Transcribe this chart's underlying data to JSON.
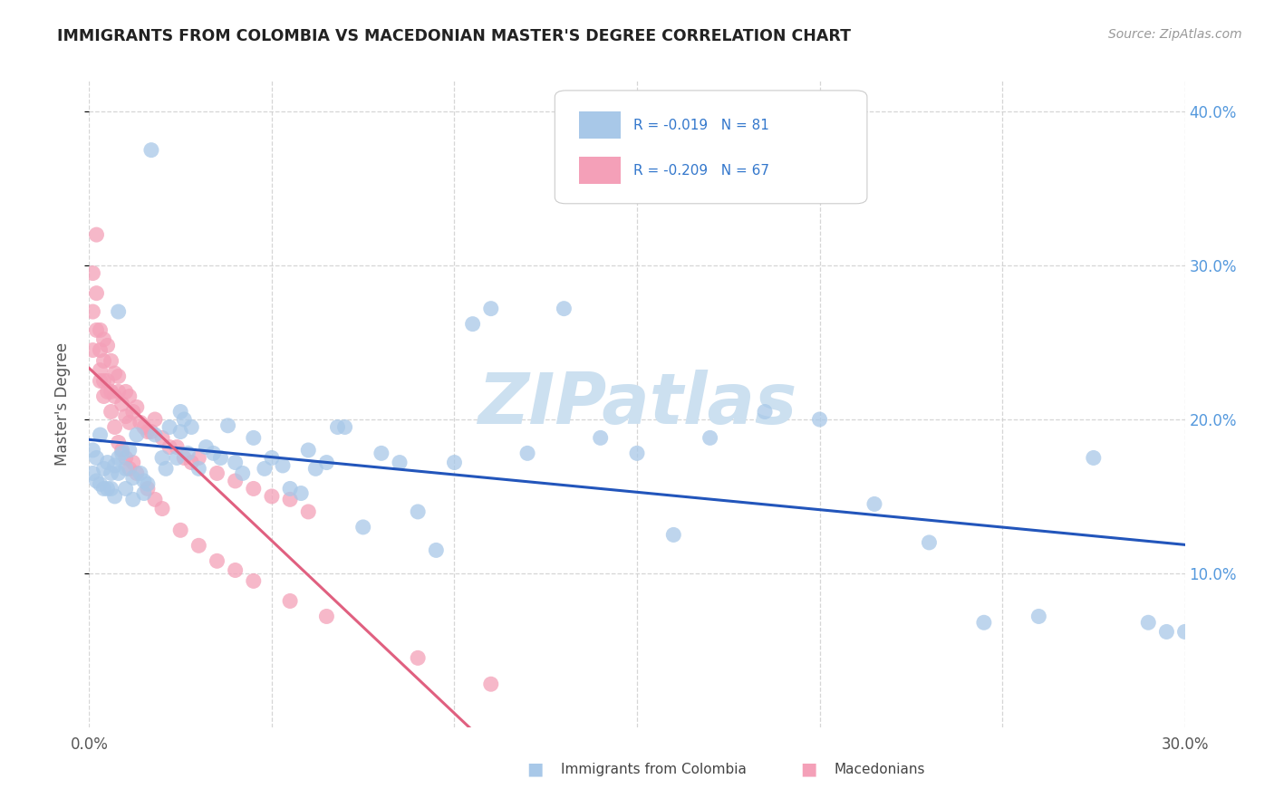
{
  "title": "IMMIGRANTS FROM COLOMBIA VS MACEDONIAN MASTER'S DEGREE CORRELATION CHART",
  "source": "Source: ZipAtlas.com",
  "ylabel": "Master's Degree",
  "legend_labels": [
    "Immigrants from Colombia",
    "Macedonians"
  ],
  "r_colombia": -0.019,
  "n_colombia": 81,
  "r_macedonian": -0.209,
  "n_macedonian": 67,
  "color_colombia": "#a8c8e8",
  "color_macedonian": "#f4a0b8",
  "line_color_colombia": "#2255bb",
  "line_color_macedonian": "#e06080",
  "watermark": "ZIPatlas",
  "watermark_color": "#cce0f0",
  "xmin": 0.0,
  "xmax": 0.3,
  "ymin": 0.0,
  "ymax": 0.42,
  "colombia_x": [
    0.001,
    0.001,
    0.002,
    0.002,
    0.003,
    0.003,
    0.004,
    0.004,
    0.005,
    0.005,
    0.006,
    0.006,
    0.007,
    0.007,
    0.008,
    0.008,
    0.009,
    0.01,
    0.01,
    0.011,
    0.012,
    0.012,
    0.013,
    0.014,
    0.015,
    0.016,
    0.017,
    0.018,
    0.02,
    0.021,
    0.022,
    0.024,
    0.025,
    0.026,
    0.027,
    0.028,
    0.03,
    0.032,
    0.034,
    0.036,
    0.038,
    0.04,
    0.042,
    0.045,
    0.048,
    0.05,
    0.053,
    0.055,
    0.058,
    0.06,
    0.062,
    0.065,
    0.068,
    0.07,
    0.075,
    0.08,
    0.085,
    0.09,
    0.095,
    0.1,
    0.105,
    0.11,
    0.12,
    0.13,
    0.14,
    0.15,
    0.16,
    0.17,
    0.185,
    0.2,
    0.215,
    0.23,
    0.245,
    0.26,
    0.275,
    0.29,
    0.295,
    0.3,
    0.008,
    0.015,
    0.025
  ],
  "colombia_y": [
    0.18,
    0.165,
    0.175,
    0.16,
    0.19,
    0.158,
    0.168,
    0.155,
    0.172,
    0.155,
    0.165,
    0.155,
    0.17,
    0.15,
    0.175,
    0.165,
    0.178,
    0.168,
    0.155,
    0.18,
    0.162,
    0.148,
    0.19,
    0.165,
    0.16,
    0.158,
    0.375,
    0.19,
    0.175,
    0.168,
    0.195,
    0.175,
    0.192,
    0.2,
    0.178,
    0.195,
    0.168,
    0.182,
    0.178,
    0.175,
    0.196,
    0.172,
    0.165,
    0.188,
    0.168,
    0.175,
    0.17,
    0.155,
    0.152,
    0.18,
    0.168,
    0.172,
    0.195,
    0.195,
    0.13,
    0.178,
    0.172,
    0.14,
    0.115,
    0.172,
    0.262,
    0.272,
    0.178,
    0.272,
    0.188,
    0.178,
    0.125,
    0.188,
    0.205,
    0.2,
    0.145,
    0.12,
    0.068,
    0.072,
    0.175,
    0.068,
    0.062,
    0.062,
    0.27,
    0.152,
    0.205
  ],
  "macedonian_x": [
    0.001,
    0.001,
    0.001,
    0.002,
    0.002,
    0.002,
    0.003,
    0.003,
    0.003,
    0.004,
    0.004,
    0.004,
    0.005,
    0.005,
    0.006,
    0.006,
    0.007,
    0.007,
    0.008,
    0.008,
    0.009,
    0.01,
    0.01,
    0.011,
    0.011,
    0.012,
    0.013,
    0.014,
    0.015,
    0.016,
    0.017,
    0.018,
    0.02,
    0.022,
    0.024,
    0.026,
    0.028,
    0.03,
    0.035,
    0.04,
    0.045,
    0.05,
    0.055,
    0.06,
    0.003,
    0.004,
    0.005,
    0.006,
    0.007,
    0.008,
    0.009,
    0.01,
    0.011,
    0.012,
    0.013,
    0.016,
    0.018,
    0.02,
    0.025,
    0.03,
    0.035,
    0.04,
    0.045,
    0.055,
    0.065,
    0.09,
    0.11
  ],
  "macedonian_y": [
    0.295,
    0.27,
    0.245,
    0.32,
    0.282,
    0.258,
    0.258,
    0.245,
    0.232,
    0.252,
    0.238,
    0.225,
    0.248,
    0.225,
    0.238,
    0.218,
    0.23,
    0.215,
    0.228,
    0.218,
    0.21,
    0.218,
    0.202,
    0.215,
    0.198,
    0.205,
    0.208,
    0.198,
    0.195,
    0.192,
    0.192,
    0.2,
    0.188,
    0.182,
    0.182,
    0.175,
    0.172,
    0.175,
    0.165,
    0.16,
    0.155,
    0.15,
    0.148,
    0.14,
    0.225,
    0.215,
    0.218,
    0.205,
    0.195,
    0.185,
    0.18,
    0.175,
    0.168,
    0.172,
    0.165,
    0.155,
    0.148,
    0.142,
    0.128,
    0.118,
    0.108,
    0.102,
    0.095,
    0.082,
    0.072,
    0.045,
    0.028
  ],
  "xticks": [
    0.0,
    0.05,
    0.1,
    0.15,
    0.2,
    0.25,
    0.3
  ],
  "xtick_labels": [
    "0.0%",
    "",
    "",
    "",
    "",
    "",
    "30.0%"
  ],
  "yticks_right": [
    0.1,
    0.2,
    0.3,
    0.4
  ],
  "ytick_labels_right": [
    "10.0%",
    "20.0%",
    "30.0%",
    "40.0%"
  ],
  "grid_color": "#cccccc",
  "background_color": "#ffffff"
}
